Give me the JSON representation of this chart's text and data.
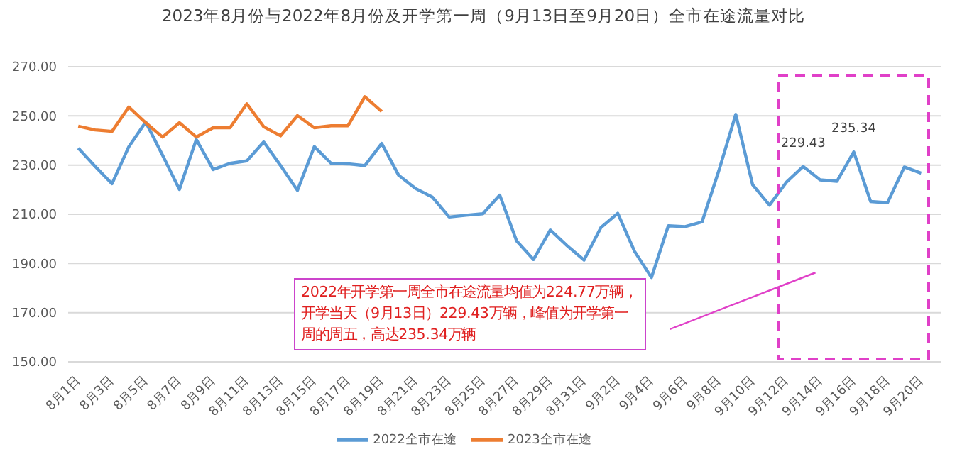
{
  "chart_data": {
    "type": "line",
    "title": "2023年8月份与2022年8月份及开学第一周（9月13日至9月20日）全市在途流量对比",
    "categories": [
      "8月1日",
      null,
      "8月3日",
      null,
      "8月5日",
      null,
      "8月7日",
      null,
      "8月9日",
      null,
      "8月11日",
      null,
      "8月13日",
      null,
      "8月15日",
      null,
      "8月17日",
      null,
      "8月19日",
      null,
      "8月21日",
      null,
      "8月23日",
      null,
      "8月25日",
      null,
      "8月27日",
      null,
      "8月29日",
      null,
      "8月31日",
      null,
      "9月2日",
      null,
      "9月4日",
      null,
      "9月6日",
      null,
      "9月8日",
      null,
      "9月10日",
      null,
      "9月12日",
      null,
      "9月14日",
      null,
      "9月16日",
      null,
      "9月18日",
      null,
      "9月20日"
    ],
    "series": [
      {
        "name": "2022全市在途",
        "color": "#5b9bd5",
        "values": [
          236.9,
          229.5,
          222.4,
          237.5,
          247.5,
          234,
          220.1,
          240.4,
          228.2,
          230.7,
          231.7,
          239.4,
          229.8,
          219.7,
          237.5,
          230.7,
          230.5,
          229.8,
          238.8,
          225.9,
          220.5,
          217,
          208.9,
          209.6,
          210.2,
          217.8,
          199.2,
          191.6,
          203.6,
          197.2,
          191.4,
          204.6,
          210.4,
          194.9,
          184.3,
          205.3,
          205,
          206.9,
          227.8,
          250.6,
          222,
          213.7,
          223,
          229.43,
          224,
          223.4,
          235.34,
          215.2,
          214.7,
          229.2,
          226.7
        ],
        "value_labels": [
          null,
          null,
          null,
          null,
          null,
          null,
          null,
          null,
          null,
          null,
          null,
          null,
          null,
          null,
          null,
          null,
          null,
          null,
          null,
          null,
          null,
          null,
          null,
          null,
          null,
          null,
          null,
          null,
          null,
          null,
          null,
          null,
          null,
          null,
          null,
          null,
          null,
          null,
          null,
          null,
          null,
          null,
          null,
          "229.43",
          null,
          null,
          "235.34",
          null,
          null,
          null,
          null
        ]
      },
      {
        "name": "2023全市在途",
        "color": "#ed7d31",
        "values": [
          245.8,
          244.3,
          243.7,
          253.6,
          247.2,
          241.4,
          247.2,
          241.4,
          245.2,
          245.2,
          254.9,
          245.6,
          241.9,
          250.1,
          245.2,
          246,
          246,
          257.8,
          251.8,
          null,
          null,
          null,
          null,
          null,
          null,
          null,
          null,
          null,
          null,
          null,
          null,
          null,
          null,
          null,
          null,
          null,
          null,
          null,
          null,
          null,
          null,
          null,
          null,
          null,
          null,
          null,
          null,
          null,
          null,
          null,
          null
        ]
      }
    ],
    "ylim": [
      150,
      270
    ],
    "yticks": [
      {
        "value": 150,
        "label": "150.00"
      },
      {
        "value": 170,
        "label": "170.00"
      },
      {
        "value": 190,
        "label": "190.00"
      },
      {
        "value": 210,
        "label": "210.00"
      },
      {
        "value": 230,
        "label": "230.00"
      },
      {
        "value": 250,
        "label": "250.00"
      },
      {
        "value": 270,
        "label": "270.00"
      }
    ],
    "grid": "y",
    "legend": "bottom",
    "marker": "none",
    "line_style": "solid",
    "annotations": [
      "2022年开学第一周全市在途流量均值为224.77万辆，开学当天（9月13日）229.43万辆，峰值为开学第一周的周五，高达235.34万辆"
    ]
  }
}
